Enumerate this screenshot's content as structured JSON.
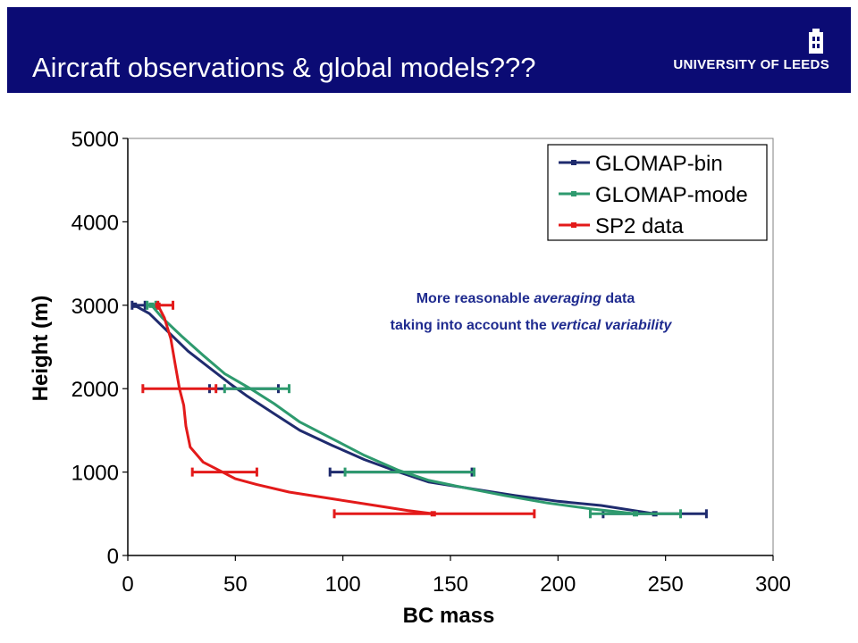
{
  "header": {
    "title": "Aircraft observations & global models???",
    "logo_text": "UNIVERSITY OF LEEDS",
    "background": "#0b0b74"
  },
  "chart_data": {
    "type": "line",
    "xlabel": "BC mass",
    "ylabel": "Height (m)",
    "xlim": [
      0,
      300
    ],
    "ylim": [
      0,
      5000
    ],
    "xticks": [
      "0",
      "50",
      "100",
      "150",
      "200",
      "250",
      "300"
    ],
    "yticks": [
      "0",
      "1000",
      "2000",
      "3000",
      "4000",
      "5000"
    ],
    "grid": false,
    "legend_position": "top-right",
    "series": [
      {
        "name": "GLOMAP-bin",
        "color": "#1f2b6e",
        "points": [
          [
            245,
            500
          ],
          [
            220,
            600
          ],
          [
            200,
            650
          ],
          [
            180,
            720
          ],
          [
            160,
            800
          ],
          [
            140,
            880
          ],
          [
            126,
            1000
          ],
          [
            110,
            1150
          ],
          [
            95,
            1320
          ],
          [
            80,
            1500
          ],
          [
            68,
            1700
          ],
          [
            55,
            1920
          ],
          [
            48,
            2050
          ],
          [
            38,
            2250
          ],
          [
            28,
            2450
          ],
          [
            18,
            2700
          ],
          [
            10,
            2900
          ],
          [
            3,
            3000
          ]
        ],
        "error_bars": [
          {
            "y": 500,
            "lo": 221,
            "hi": 269
          },
          {
            "y": 1000,
            "lo": 94,
            "hi": 160
          },
          {
            "y": 2000,
            "lo": 38,
            "hi": 70
          },
          {
            "y": 3000,
            "lo": 2,
            "hi": 8
          }
        ]
      },
      {
        "name": "GLOMAP-mode",
        "color": "#2e9a6e",
        "points": [
          [
            236,
            500
          ],
          [
            215,
            560
          ],
          [
            195,
            630
          ],
          [
            175,
            720
          ],
          [
            155,
            820
          ],
          [
            140,
            900
          ],
          [
            126,
            1020
          ],
          [
            110,
            1200
          ],
          [
            95,
            1400
          ],
          [
            80,
            1600
          ],
          [
            68,
            1820
          ],
          [
            57,
            2000
          ],
          [
            45,
            2180
          ],
          [
            35,
            2400
          ],
          [
            25,
            2630
          ],
          [
            16,
            2850
          ],
          [
            11,
            3000
          ]
        ],
        "error_bars": [
          {
            "y": 500,
            "lo": 215,
            "hi": 257
          },
          {
            "y": 1000,
            "lo": 101,
            "hi": 161
          },
          {
            "y": 2000,
            "lo": 45,
            "hi": 75
          },
          {
            "y": 3000,
            "lo": 9,
            "hi": 13
          }
        ]
      },
      {
        "name": "SP2 data",
        "color": "#e31a1a",
        "points": [
          [
            142,
            500
          ],
          [
            130,
            540
          ],
          [
            115,
            600
          ],
          [
            95,
            680
          ],
          [
            75,
            760
          ],
          [
            60,
            850
          ],
          [
            50,
            920
          ],
          [
            44,
            1000
          ],
          [
            35,
            1120
          ],
          [
            29,
            1300
          ],
          [
            27,
            1550
          ],
          [
            26,
            1800
          ],
          [
            24,
            2000
          ],
          [
            22,
            2300
          ],
          [
            20,
            2600
          ],
          [
            17,
            2850
          ],
          [
            14,
            3000
          ]
        ],
        "error_bars": [
          {
            "y": 500,
            "lo": 96,
            "hi": 189
          },
          {
            "y": 1000,
            "lo": 30,
            "hi": 60
          },
          {
            "y": 2000,
            "lo": 7,
            "hi": 41
          },
          {
            "y": 3000,
            "lo": 14,
            "hi": 21
          }
        ]
      }
    ],
    "annotation": {
      "line1": [
        {
          "text": "More reasonable ",
          "italic": false
        },
        {
          "text": "averaging",
          "italic": true
        },
        {
          "text": " data",
          "italic": false
        }
      ],
      "line2": [
        {
          "text": "taking into account the ",
          "italic": false
        },
        {
          "text": "vertical variability",
          "italic": true
        }
      ]
    }
  }
}
